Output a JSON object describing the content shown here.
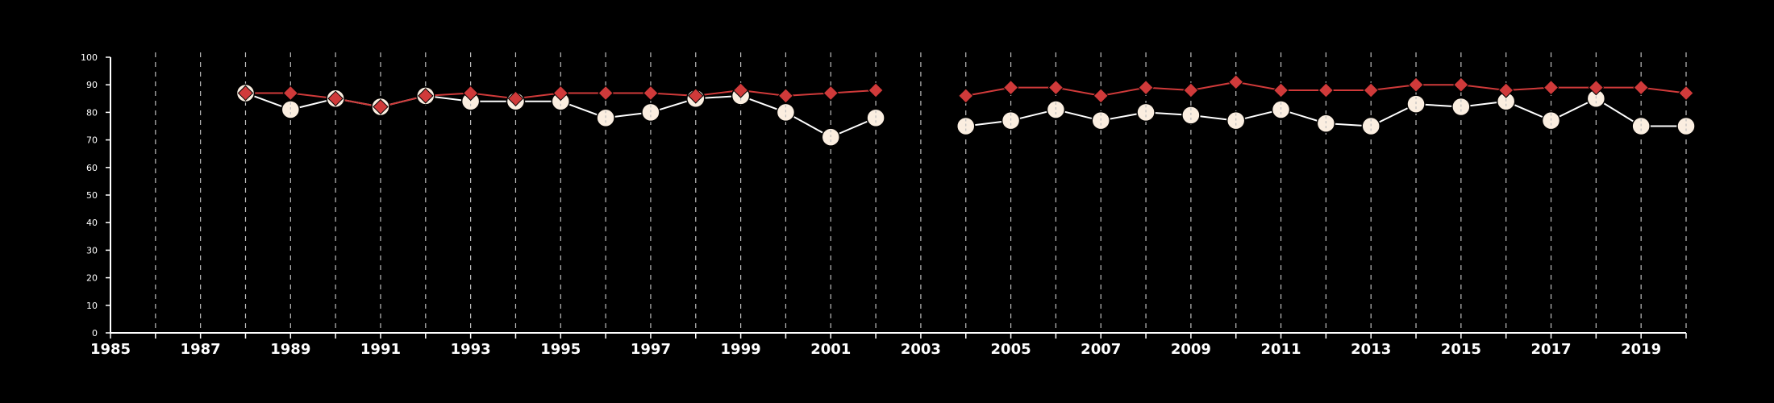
{
  "chart_data": {
    "type": "line",
    "title": "",
    "xlabel": "",
    "ylabel": "",
    "xlim": [
      1985,
      2020
    ],
    "ylim": [
      0,
      100
    ],
    "grid": "vertical dashed",
    "y_ticks": [
      "0",
      "10",
      "20",
      "30",
      "40",
      "50",
      "60",
      "70",
      "80",
      "90",
      "100"
    ],
    "x_tick_labels": [
      "1985",
      "1987",
      "1989",
      "1991",
      "1993",
      "1995",
      "1997",
      "1999",
      "2001",
      "2003",
      "2005",
      "2007",
      "2009",
      "2011",
      "2013",
      "2015",
      "2017",
      "2019"
    ],
    "x": [
      1988,
      1989,
      1990,
      1991,
      1992,
      1993,
      1994,
      1995,
      1996,
      1997,
      1998,
      1999,
      2000,
      2001,
      2002,
      2004,
      2005,
      2006,
      2007,
      2008,
      2009,
      2010,
      2011,
      2012,
      2013,
      2014,
      2015,
      2016,
      2017,
      2018,
      2019,
      2020
    ],
    "series": [
      {
        "marker": "circle",
        "color": "#fbeee0",
        "line_color": "#ffffff",
        "values": [
          87,
          81,
          85,
          82,
          86,
          84,
          84,
          84,
          78,
          80,
          85,
          86,
          80,
          71,
          78,
          75,
          77,
          81,
          77,
          80,
          79,
          77,
          81,
          76,
          75,
          83,
          82,
          84,
          77,
          85,
          75,
          75
        ]
      },
      {
        "marker": "diamond",
        "color": "#d03a3a",
        "line_color": "#d03a3a",
        "values": [
          87,
          87,
          85,
          82,
          86,
          87,
          85,
          87,
          87,
          87,
          86,
          88,
          86,
          87,
          88,
          86,
          89,
          89,
          86,
          89,
          88,
          91,
          88,
          88,
          88,
          90,
          90,
          88,
          89,
          89,
          89,
          87
        ]
      }
    ],
    "gap_between": [
      2002,
      2004
    ]
  }
}
